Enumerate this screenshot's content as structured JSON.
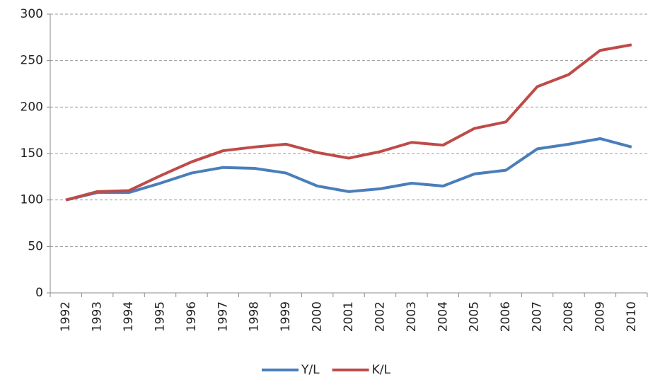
{
  "chart_data": {
    "type": "line",
    "categories": [
      "1992",
      "1993",
      "1994",
      "1995",
      "1996",
      "1997",
      "1998",
      "1999",
      "2000",
      "2001",
      "2002",
      "2003",
      "2004",
      "2005",
      "2006",
      "2007",
      "2008",
      "2009",
      "2010"
    ],
    "series": [
      {
        "name": "Y/L",
        "color": "#4a7ebb",
        "values": [
          100,
          108,
          108,
          118,
          129,
          135,
          134,
          129,
          115,
          109,
          112,
          118,
          115,
          128,
          132,
          155,
          160,
          166,
          157
        ]
      },
      {
        "name": "K/L",
        "color": "#be4b48",
        "values": [
          100,
          109,
          110,
          126,
          141,
          153,
          157,
          160,
          151,
          145,
          152,
          162,
          159,
          177,
          184,
          222,
          235,
          261,
          267
        ]
      }
    ],
    "ylim": [
      0,
      300
    ],
    "yticks": [
      0,
      50,
      100,
      150,
      200,
      250,
      300
    ],
    "grid": true,
    "legend": "bottom"
  }
}
